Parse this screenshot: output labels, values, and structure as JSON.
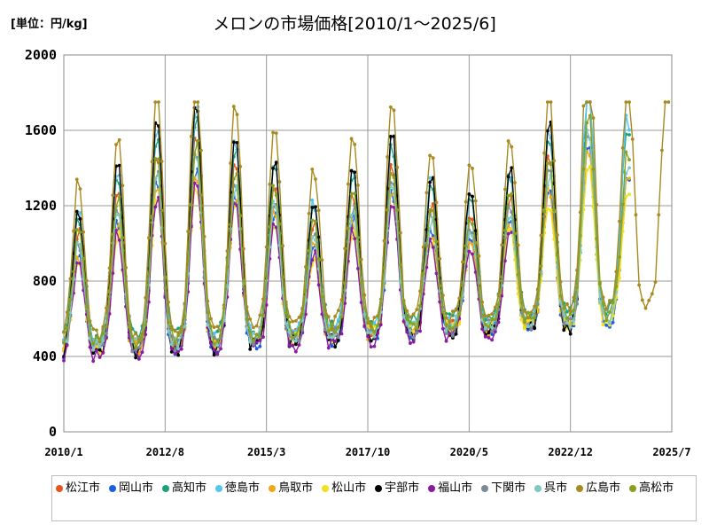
{
  "unit_label": "[単位：円/kg]",
  "chart_data": {
    "type": "line",
    "title": "メロンの市場価格[2010/1〜2025/6]",
    "ylim": [
      0,
      2000
    ],
    "yticks": [
      0,
      400,
      800,
      1200,
      1600,
      2000
    ],
    "xlim": [
      "2010/1",
      "2025/7"
    ],
    "xticks": [
      "2010/1",
      "2012/8",
      "2015/3",
      "2017/10",
      "2020/5",
      "2022/12",
      "2025/7"
    ],
    "grid": true,
    "legend": "bottom",
    "series": [
      {
        "name": "松江市",
        "color": "#e8541a",
        "amp": 1.0,
        "offset": 15,
        "end": "2022/6"
      },
      {
        "name": "岡山市",
        "color": "#1a5fe0",
        "amp": 0.92,
        "offset": -10,
        "end": "2024/6"
      },
      {
        "name": "高知市",
        "color": "#1aa37a",
        "amp": 1.05,
        "offset": 60,
        "end": "2024/6"
      },
      {
        "name": "徳島市",
        "color": "#55c4f0",
        "amp": 1.1,
        "offset": 30,
        "end": "2024/6"
      },
      {
        "name": "鳥取市",
        "color": "#f0a81a",
        "amp": 0.9,
        "offset": 0,
        "end": "2024/6"
      },
      {
        "name": "松山市",
        "color": "#f0e020",
        "amp": 0.85,
        "offset": 5,
        "end": "2024/6"
      },
      {
        "name": "宇部市",
        "color": "#000000",
        "amp": 1.15,
        "offset": -20,
        "end": "2023/2"
      },
      {
        "name": "福山市",
        "color": "#8a1aa3",
        "amp": 0.88,
        "offset": -25,
        "end": "2021/6"
      },
      {
        "name": "下関市",
        "color": "#7a8a9a",
        "amp": 0.95,
        "offset": 10,
        "end": "2023/6"
      },
      {
        "name": "呉市",
        "color": "#80c8c0",
        "amp": 0.93,
        "offset": 20,
        "end": "2024/6"
      },
      {
        "name": "広島市",
        "color": "#a88a20",
        "amp": 1.2,
        "offset": 80,
        "end": "2025/6"
      },
      {
        "name": "高松市",
        "color": "#88a020",
        "amp": 0.97,
        "offset": 40,
        "end": "2024/6"
      }
    ]
  }
}
